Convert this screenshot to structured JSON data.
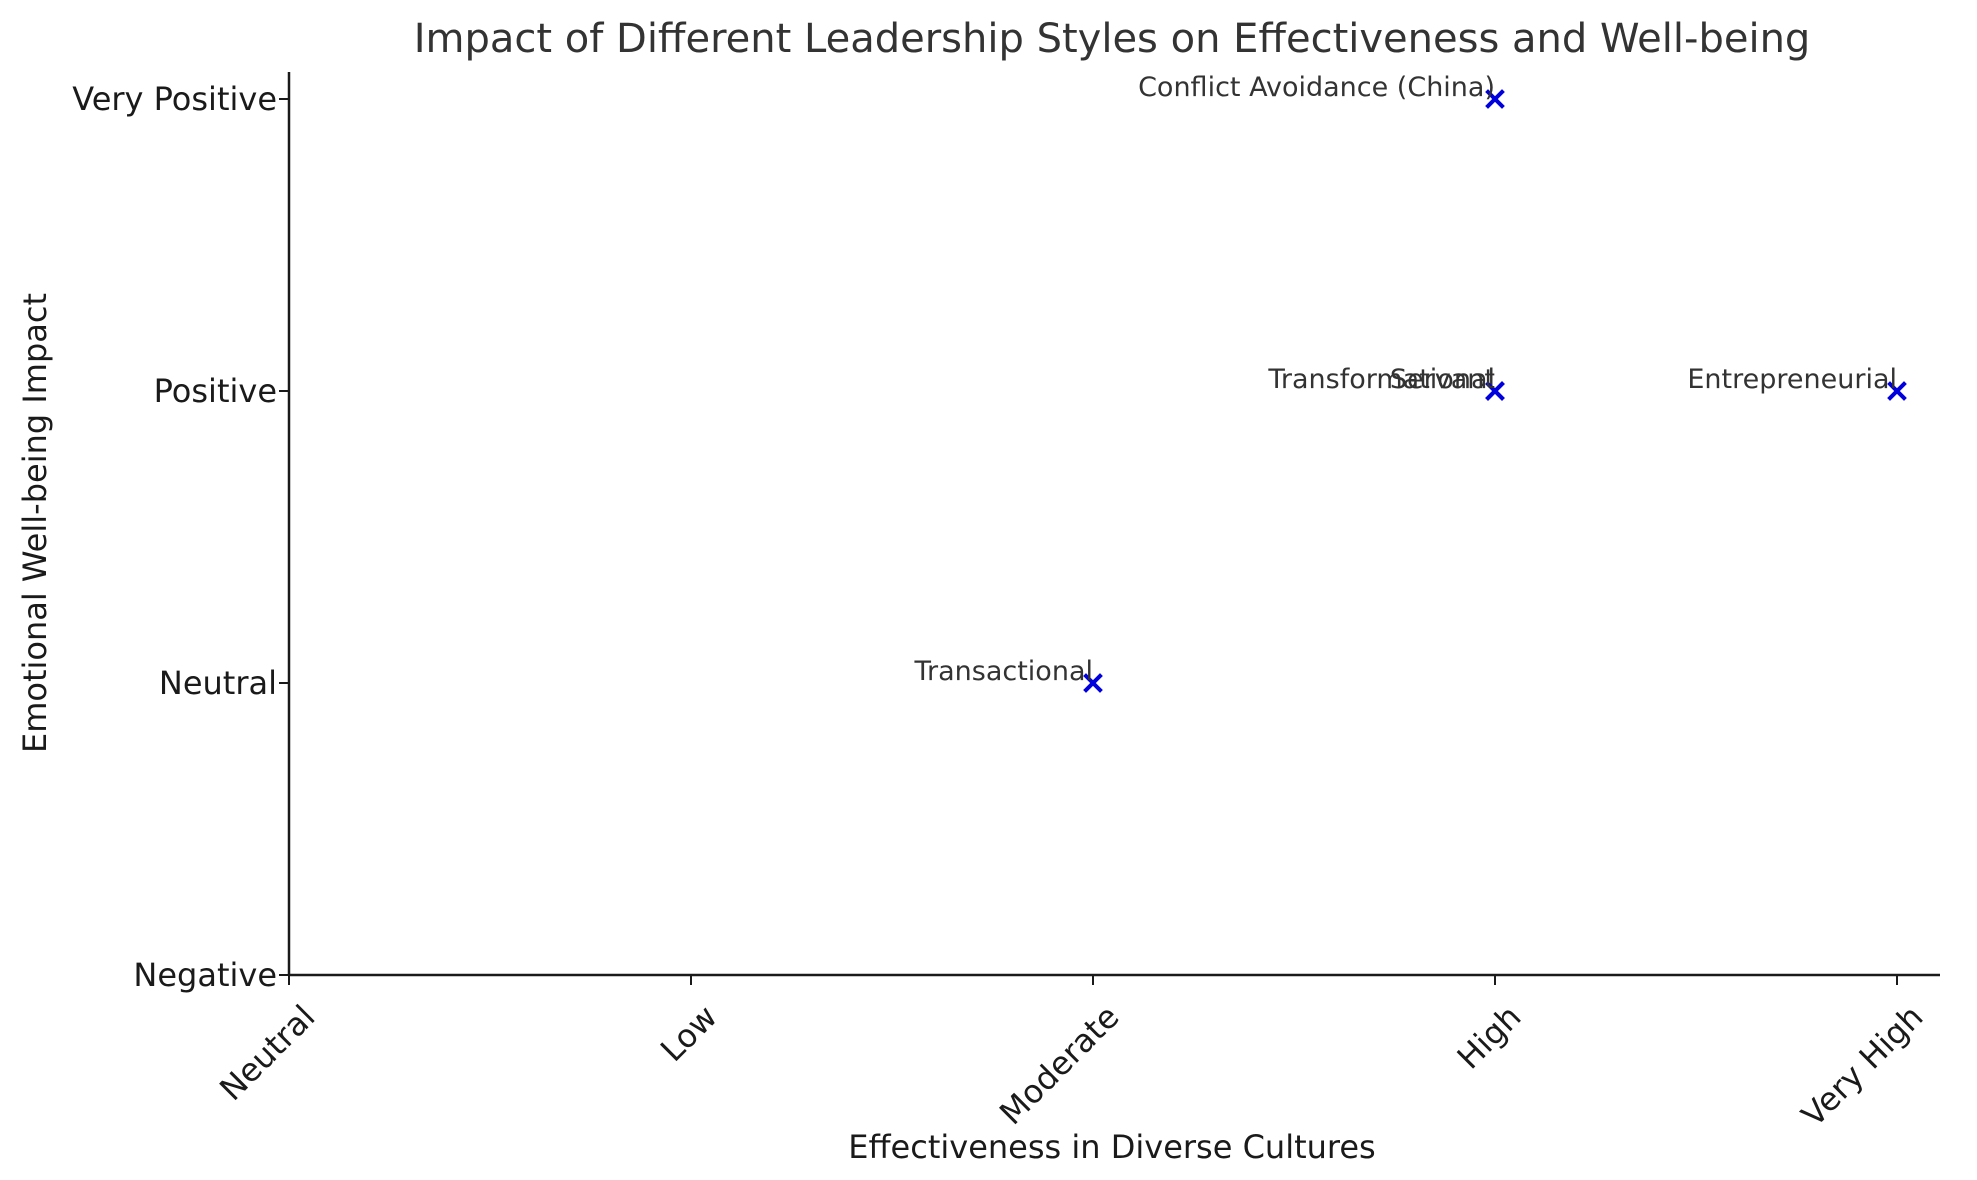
{
  "chart_data": {
    "type": "scatter",
    "title": "Impact of Different Leadership Styles on Effectiveness and Well-being",
    "xlabel": "Effectiveness in Diverse Cultures",
    "ylabel": "Emotional Well-being Impact",
    "x_ticks": [
      "Neutral",
      "Low",
      "Moderate",
      "High",
      "Very High"
    ],
    "y_ticks": [
      "Negative",
      "Neutral",
      "Positive",
      "Very Positive"
    ],
    "xlim": [
      0,
      4
    ],
    "ylim": [
      0,
      3
    ],
    "grid": false,
    "marker_color": "#0000dd",
    "points": [
      {
        "label": "Transformational",
        "x": "High",
        "y": "Positive"
      },
      {
        "label": "Transactional",
        "x": "Moderate",
        "y": "Neutral"
      },
      {
        "label": "Servant",
        "x": "High",
        "y": "Positive"
      },
      {
        "label": "Entrepreneurial",
        "x": "Very High",
        "y": "Positive"
      },
      {
        "label": "Conflict Avoidance (China)",
        "x": "High",
        "y": "Very Positive"
      }
    ]
  }
}
